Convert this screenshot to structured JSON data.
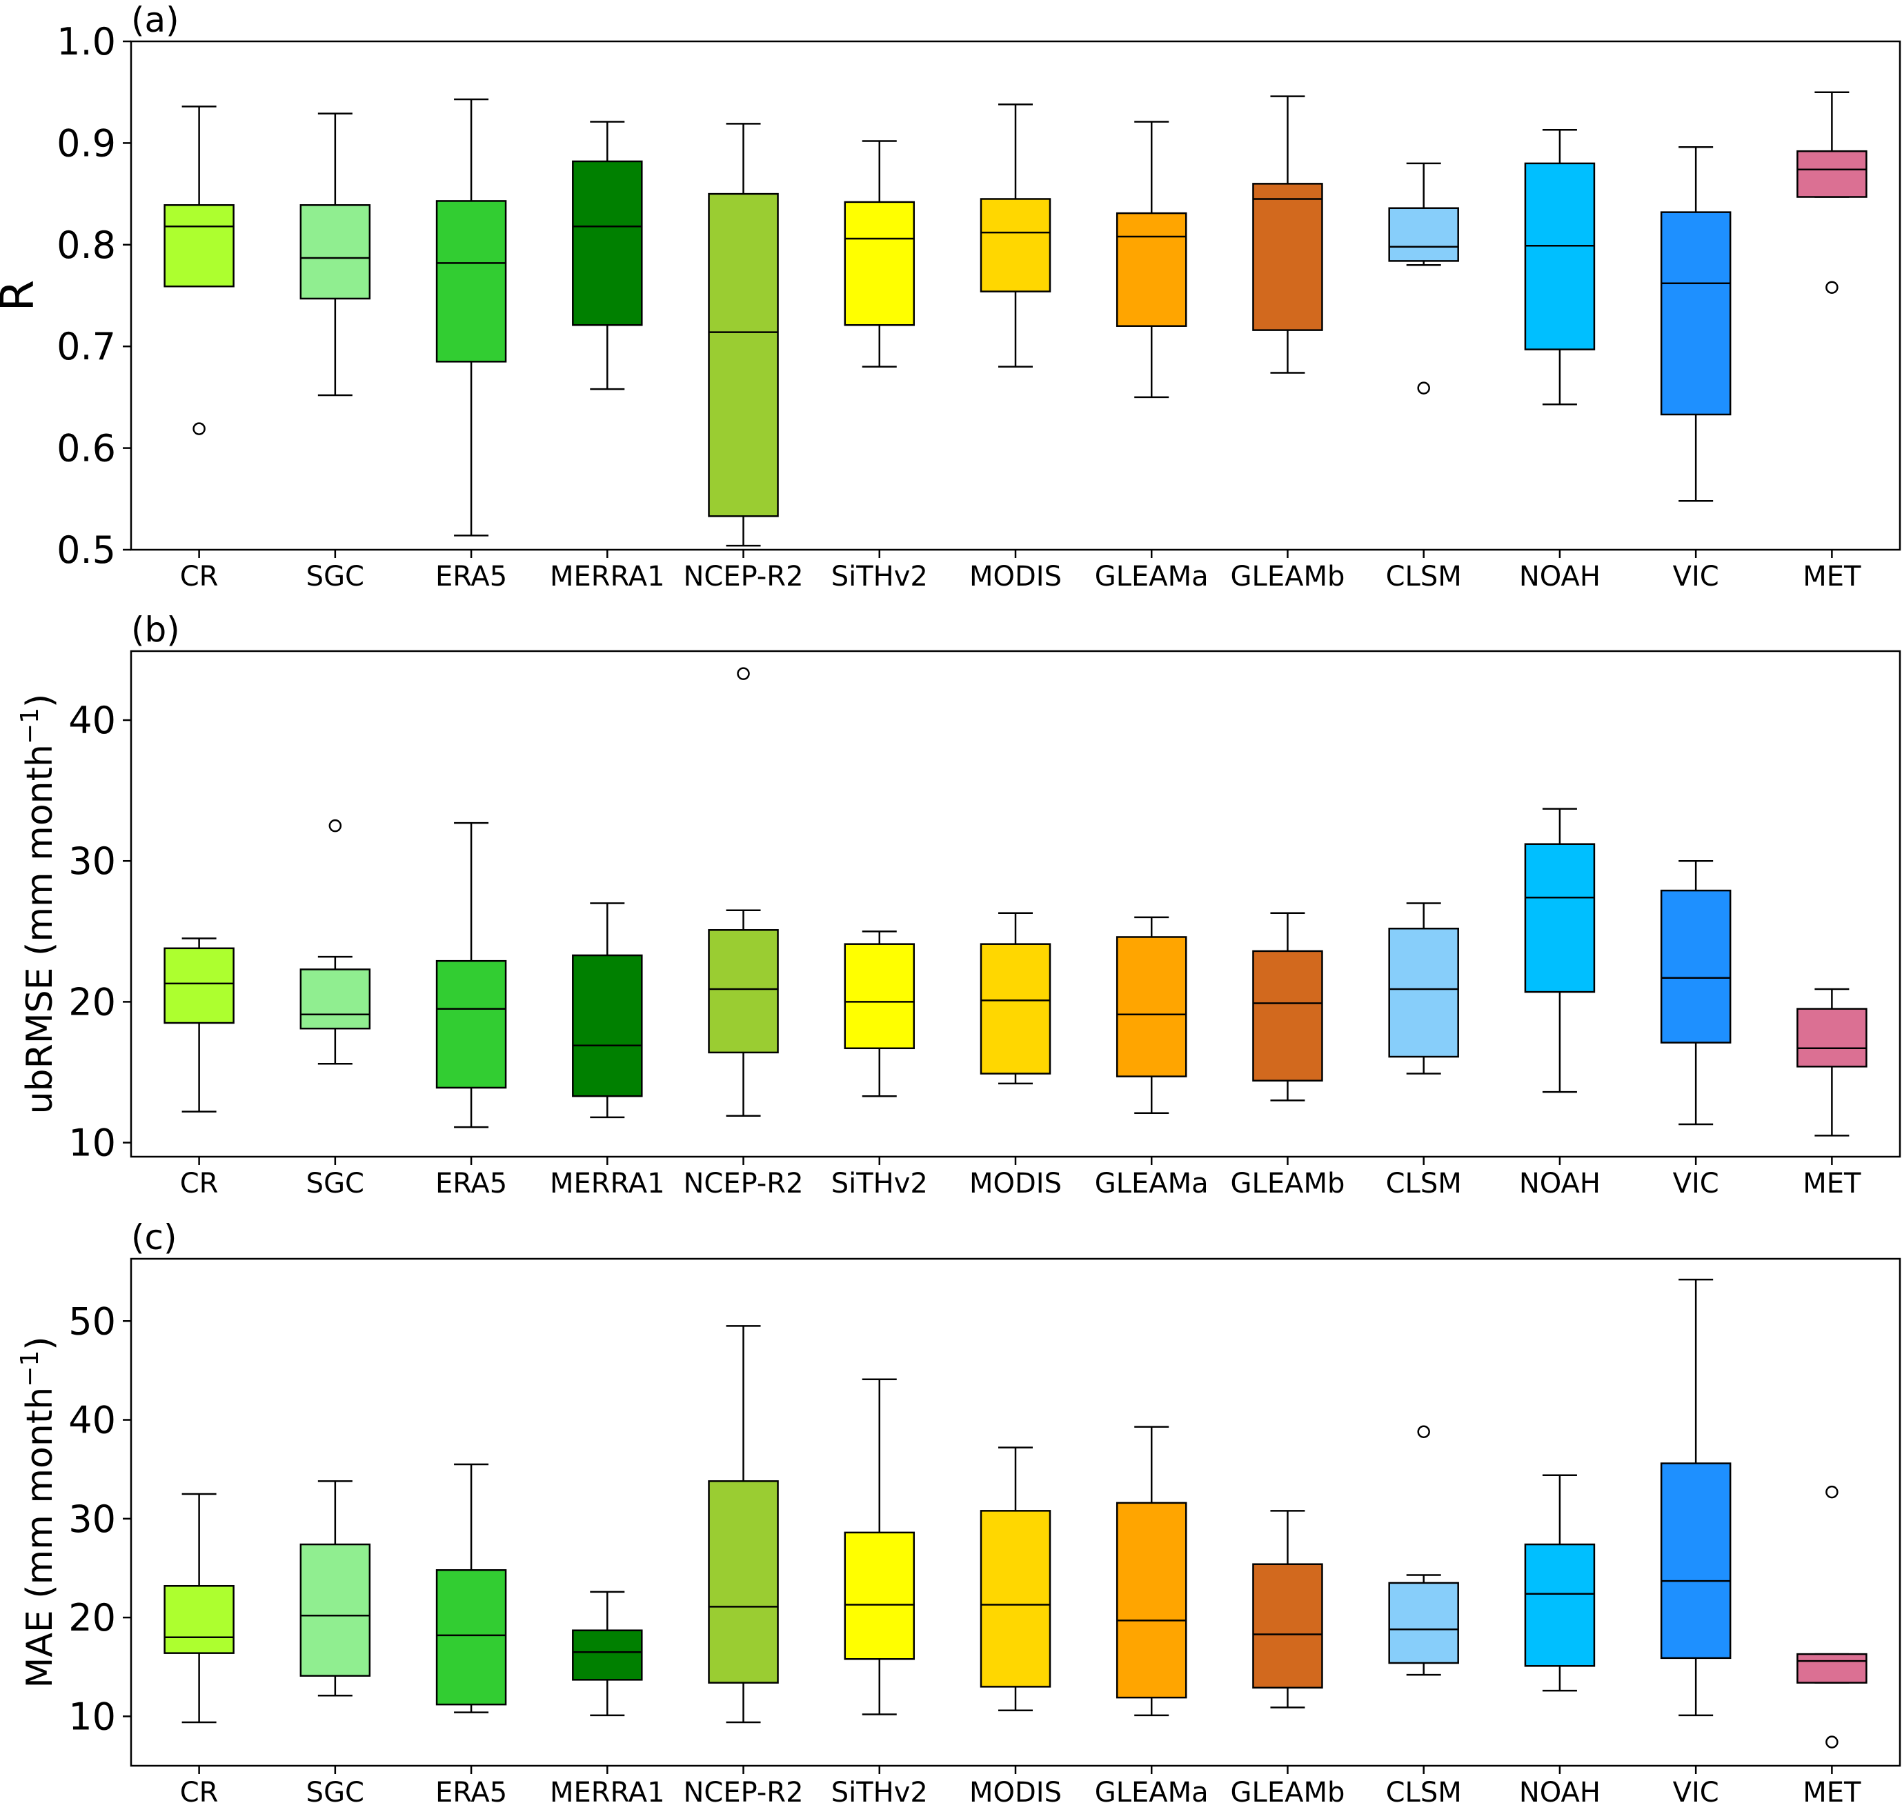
{
  "chart_data": [
    {
      "type": "box",
      "panel_label": "(a)",
      "ylabel": "R",
      "ylim": [
        0.5,
        1.0
      ],
      "yticks": [
        0.5,
        0.6,
        0.7,
        0.8,
        0.9,
        1.0
      ],
      "ytick_labels": [
        "0.5",
        "0.6",
        "0.7",
        "0.8",
        "0.9",
        "1.0"
      ],
      "grid": false,
      "categories": [
        "CR",
        "SGC",
        "ERA5",
        "MERRA1",
        "NCEP-R2",
        "SiTHv2",
        "MODIS",
        "GLEAMa",
        "GLEAMb",
        "CLSM",
        "NOAH",
        "VIC",
        "MET"
      ],
      "boxes": [
        {
          "whisker_low": 0.759,
          "q1": 0.759,
          "median": 0.818,
          "q3": 0.839,
          "whisker_high": 0.936,
          "outliers": [
            0.619
          ]
        },
        {
          "whisker_low": 0.652,
          "q1": 0.747,
          "median": 0.787,
          "q3": 0.839,
          "whisker_high": 0.929,
          "outliers": []
        },
        {
          "whisker_low": 0.514,
          "q1": 0.685,
          "median": 0.782,
          "q3": 0.843,
          "whisker_high": 0.943,
          "outliers": []
        },
        {
          "whisker_low": 0.658,
          "q1": 0.721,
          "median": 0.818,
          "q3": 0.882,
          "whisker_high": 0.921,
          "outliers": []
        },
        {
          "whisker_low": 0.504,
          "q1": 0.533,
          "median": 0.714,
          "q3": 0.85,
          "whisker_high": 0.919,
          "outliers": []
        },
        {
          "whisker_low": 0.68,
          "q1": 0.721,
          "median": 0.806,
          "q3": 0.842,
          "whisker_high": 0.902,
          "outliers": []
        },
        {
          "whisker_low": 0.68,
          "q1": 0.754,
          "median": 0.812,
          "q3": 0.845,
          "whisker_high": 0.938,
          "outliers": []
        },
        {
          "whisker_low": 0.65,
          "q1": 0.72,
          "median": 0.808,
          "q3": 0.831,
          "whisker_high": 0.921,
          "outliers": []
        },
        {
          "whisker_low": 0.674,
          "q1": 0.716,
          "median": 0.845,
          "q3": 0.86,
          "whisker_high": 0.946,
          "outliers": []
        },
        {
          "whisker_low": 0.78,
          "q1": 0.784,
          "median": 0.798,
          "q3": 0.836,
          "whisker_high": 0.88,
          "outliers": [
            0.659
          ]
        },
        {
          "whisker_low": 0.643,
          "q1": 0.697,
          "median": 0.799,
          "q3": 0.88,
          "whisker_high": 0.913,
          "outliers": []
        },
        {
          "whisker_low": 0.548,
          "q1": 0.633,
          "median": 0.762,
          "q3": 0.832,
          "whisker_high": 0.896,
          "outliers": []
        },
        {
          "whisker_low": 0.847,
          "q1": 0.847,
          "median": 0.874,
          "q3": 0.892,
          "whisker_high": 0.95,
          "outliers": [
            0.758
          ]
        }
      ]
    },
    {
      "type": "box",
      "panel_label": "(b)",
      "ylabel": "ubRMSE (mm month",
      "ylabel_sup": "−1",
      "ylabel_suffix": ")",
      "ylim": [
        9.0,
        44.9
      ],
      "yticks": [
        10,
        20,
        30,
        40
      ],
      "ytick_labels": [
        "10",
        "20",
        "30",
        "40"
      ],
      "grid": false,
      "categories": [
        "CR",
        "SGC",
        "ERA5",
        "MERRA1",
        "NCEP-R2",
        "SiTHv2",
        "MODIS",
        "GLEAMa",
        "GLEAMb",
        "CLSM",
        "NOAH",
        "VIC",
        "MET"
      ],
      "boxes": [
        {
          "whisker_low": 12.2,
          "q1": 18.5,
          "median": 21.3,
          "q3": 23.8,
          "whisker_high": 24.5,
          "outliers": []
        },
        {
          "whisker_low": 15.6,
          "q1": 18.1,
          "median": 19.1,
          "q3": 22.3,
          "whisker_high": 23.2,
          "outliers": [
            32.5
          ]
        },
        {
          "whisker_low": 11.1,
          "q1": 13.9,
          "median": 19.5,
          "q3": 22.9,
          "whisker_high": 32.7,
          "outliers": []
        },
        {
          "whisker_low": 11.8,
          "q1": 13.3,
          "median": 16.9,
          "q3": 23.3,
          "whisker_high": 27.0,
          "outliers": []
        },
        {
          "whisker_low": 11.9,
          "q1": 16.4,
          "median": 20.9,
          "q3": 25.1,
          "whisker_high": 26.5,
          "outliers": [
            43.3
          ]
        },
        {
          "whisker_low": 13.3,
          "q1": 16.7,
          "median": 20.0,
          "q3": 24.1,
          "whisker_high": 25.0,
          "outliers": []
        },
        {
          "whisker_low": 14.2,
          "q1": 14.9,
          "median": 20.1,
          "q3": 24.1,
          "whisker_high": 26.3,
          "outliers": []
        },
        {
          "whisker_low": 12.1,
          "q1": 14.7,
          "median": 19.1,
          "q3": 24.6,
          "whisker_high": 26.0,
          "outliers": []
        },
        {
          "whisker_low": 13.0,
          "q1": 14.4,
          "median": 19.9,
          "q3": 23.6,
          "whisker_high": 26.3,
          "outliers": []
        },
        {
          "whisker_low": 14.9,
          "q1": 16.1,
          "median": 20.9,
          "q3": 25.2,
          "whisker_high": 27.0,
          "outliers": []
        },
        {
          "whisker_low": 13.6,
          "q1": 20.7,
          "median": 27.4,
          "q3": 31.2,
          "whisker_high": 33.7,
          "outliers": []
        },
        {
          "whisker_low": 11.3,
          "q1": 17.1,
          "median": 21.7,
          "q3": 27.9,
          "whisker_high": 30.0,
          "outliers": []
        },
        {
          "whisker_low": 10.5,
          "q1": 15.4,
          "median": 16.7,
          "q3": 19.5,
          "whisker_high": 20.9,
          "outliers": []
        }
      ]
    },
    {
      "type": "box",
      "panel_label": "(c)",
      "ylabel": "MAE (mm month",
      "ylabel_sup": "−1",
      "ylabel_suffix": ")",
      "ylim": [
        5.0,
        56.3
      ],
      "yticks": [
        10,
        20,
        30,
        40,
        50
      ],
      "ytick_labels": [
        "10",
        "20",
        "30",
        "40",
        "50"
      ],
      "grid": false,
      "categories": [
        "CR",
        "SGC",
        "ERA5",
        "MERRA1",
        "NCEP-R2",
        "SiTHv2",
        "MODIS",
        "GLEAMa",
        "GLEAMb",
        "CLSM",
        "NOAH",
        "VIC",
        "MET"
      ],
      "boxes": [
        {
          "whisker_low": 9.4,
          "q1": 16.4,
          "median": 18.0,
          "q3": 23.2,
          "whisker_high": 32.5,
          "outliers": []
        },
        {
          "whisker_low": 12.1,
          "q1": 14.1,
          "median": 20.2,
          "q3": 27.4,
          "whisker_high": 33.8,
          "outliers": []
        },
        {
          "whisker_low": 10.4,
          "q1": 11.2,
          "median": 18.2,
          "q3": 24.8,
          "whisker_high": 35.5,
          "outliers": []
        },
        {
          "whisker_low": 10.1,
          "q1": 13.7,
          "median": 16.5,
          "q3": 18.7,
          "whisker_high": 22.6,
          "outliers": []
        },
        {
          "whisker_low": 9.4,
          "q1": 13.4,
          "median": 21.1,
          "q3": 33.8,
          "whisker_high": 49.5,
          "outliers": []
        },
        {
          "whisker_low": 10.2,
          "q1": 15.8,
          "median": 21.3,
          "q3": 28.6,
          "whisker_high": 44.1,
          "outliers": []
        },
        {
          "whisker_low": 10.6,
          "q1": 13.0,
          "median": 21.3,
          "q3": 30.8,
          "whisker_high": 37.2,
          "outliers": []
        },
        {
          "whisker_low": 10.1,
          "q1": 11.9,
          "median": 19.7,
          "q3": 31.6,
          "whisker_high": 39.3,
          "outliers": []
        },
        {
          "whisker_low": 10.9,
          "q1": 12.9,
          "median": 18.3,
          "q3": 25.4,
          "whisker_high": 30.8,
          "outliers": []
        },
        {
          "whisker_low": 14.2,
          "q1": 15.4,
          "median": 18.8,
          "q3": 23.5,
          "whisker_high": 24.3,
          "outliers": [
            38.8
          ]
        },
        {
          "whisker_low": 12.6,
          "q1": 15.1,
          "median": 22.4,
          "q3": 27.4,
          "whisker_high": 34.4,
          "outliers": []
        },
        {
          "whisker_low": 10.1,
          "q1": 15.9,
          "median": 23.7,
          "q3": 35.6,
          "whisker_high": 54.2,
          "outliers": []
        },
        {
          "whisker_low": 13.4,
          "q1": 13.4,
          "median": 15.6,
          "q3": 16.3,
          "whisker_high": 16.3,
          "outliers": [
            32.7,
            7.4
          ]
        }
      ]
    }
  ],
  "colors": [
    "#adff2f",
    "#90ee90",
    "#32cd32",
    "#008000",
    "#9acd32",
    "#ffff00",
    "#ffd700",
    "#ffa500",
    "#d2691e",
    "#87cefa",
    "#00bfff",
    "#1e90ff",
    "#db7093"
  ],
  "style": {
    "edge_color": "#000000",
    "axes_color": "#000000",
    "background": "#ffffff"
  }
}
